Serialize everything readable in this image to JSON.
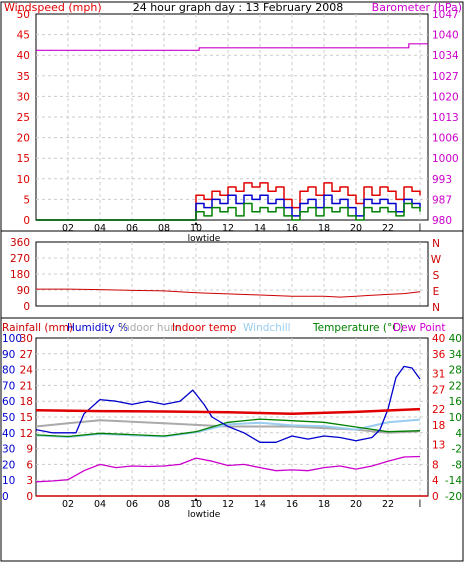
{
  "title": "24 hour graph day : 13 February 2008",
  "colors": {
    "wind": "#e00000",
    "gust_blue": "#0000cc",
    "gust_green": "#008000",
    "barometer": "#cc00cc",
    "direction": "#cc0000",
    "rainfall": "#cc0000",
    "humidity": "#0000cc",
    "indoor_hum": "#aaaaaa",
    "indoor_temp": "#e00000",
    "windchill": "#99ccee",
    "temperature": "#008000",
    "dew_point": "#cc00cc",
    "grid": "#cccccc"
  },
  "x_ticks": [
    "02",
    "04",
    "06",
    "08",
    "10",
    "12",
    "14",
    "16",
    "18",
    "20",
    "22",
    "l"
  ],
  "x_marker": "lowtide",
  "chart_data": [
    {
      "type": "line",
      "labels": {
        "windspeed": "Windspeed (mph)",
        "barometer": "Barometer (hPa)"
      },
      "y_left": {
        "ticks": [
          "0",
          "5",
          "10",
          "15",
          "20",
          "25",
          "30",
          "35",
          "40",
          "45",
          "50"
        ],
        "ylim": [
          0,
          50
        ]
      },
      "y_right": {
        "ticks": [
          "980",
          "987",
          "993",
          "1000",
          "1006",
          "1013",
          "1020",
          "1027",
          "1034",
          "1040",
          "1047"
        ],
        "ylim": [
          980,
          1047
        ]
      },
      "series": {
        "barometer": {
          "x": [
            0,
            10,
            10.2,
            23,
            23.3,
            24.5
          ],
          "y": [
            1035.2,
            1035.2,
            1036,
            1036,
            1037.3,
            1037.3
          ]
        },
        "wind_red": {
          "x": [
            0,
            9.9,
            10,
            10.5,
            11,
            11.5,
            12,
            12.5,
            13,
            13.5,
            14,
            14.5,
            15,
            15.5,
            16,
            16.5,
            17,
            17.5,
            18,
            18.5,
            19,
            19.5,
            20,
            20.5,
            21,
            21.5,
            22,
            22.5,
            23,
            23.5,
            24
          ],
          "y": [
            0,
            0,
            6,
            5,
            7,
            6,
            8,
            7,
            9,
            8,
            9,
            7,
            8,
            5,
            3,
            7,
            8,
            6,
            9,
            7,
            8,
            6,
            4,
            8,
            6,
            8,
            7,
            5,
            8,
            7,
            6
          ]
        },
        "wind_blue": {
          "x": [
            0,
            9.9,
            10,
            10.5,
            11,
            11.5,
            12,
            12.5,
            13,
            13.5,
            14,
            14.5,
            15,
            15.5,
            16,
            16.5,
            17,
            17.5,
            18,
            18.5,
            19,
            19.5,
            20,
            20.5,
            21,
            21.5,
            22,
            22.5,
            23,
            23.5,
            24
          ],
          "y": [
            0,
            0,
            4,
            3,
            5,
            4,
            6,
            4,
            6,
            5,
            6,
            4,
            5,
            3,
            1,
            4,
            5,
            3,
            6,
            4,
            5,
            3,
            1,
            5,
            4,
            5,
            4,
            2,
            5,
            4,
            3
          ]
        },
        "wind_green": {
          "x": [
            0,
            9.9,
            10,
            10.5,
            11,
            11.5,
            12,
            12.5,
            13,
            13.5,
            14,
            14.5,
            15,
            15.5,
            16,
            16.5,
            17,
            17.5,
            18,
            18.5,
            19,
            19.5,
            20,
            20.5,
            21,
            21.5,
            22,
            22.5,
            23,
            23.5,
            24
          ],
          "y": [
            0,
            0,
            2,
            1,
            3,
            2,
            3,
            1,
            4,
            2,
            3,
            2,
            3,
            1,
            0,
            2,
            3,
            1,
            3,
            2,
            3,
            1,
            0,
            3,
            2,
            3,
            2,
            1,
            4,
            3,
            2
          ]
        }
      }
    },
    {
      "type": "line",
      "labels": {
        "direction_letters": [
          "N",
          "W",
          "S",
          "E",
          "N"
        ]
      },
      "y_left": {
        "ticks": [
          "0",
          "90",
          "180",
          "270",
          "360"
        ],
        "ylim": [
          0,
          360
        ]
      },
      "series": {
        "direction": {
          "x": [
            0,
            2,
            4,
            6,
            8,
            10,
            12,
            14,
            16,
            18,
            19,
            20,
            21,
            22,
            23,
            24
          ],
          "y": [
            95,
            95,
            92,
            88,
            85,
            75,
            68,
            62,
            55,
            55,
            50,
            55,
            60,
            65,
            70,
            80
          ]
        }
      }
    },
    {
      "type": "line",
      "labels": {
        "rainfall": "Rainfall (mm)",
        "humidity": "Humidity %",
        "indoor_hum": "Indoor hum",
        "indoor_temp": "Indoor temp",
        "windchill": "Windchill",
        "temperature": "Temperature (°C)",
        "dew_point": "Dew Point"
      },
      "y_humidity": {
        "ticks": [
          "0",
          "10",
          "20",
          "30",
          "40",
          "50",
          "60",
          "70",
          "80",
          "90",
          "100"
        ],
        "ylim": [
          0,
          100
        ]
      },
      "y_rain": {
        "ticks": [
          "0",
          "3",
          "6",
          "9",
          "12",
          "15",
          "18",
          "21",
          "24",
          "27",
          "30"
        ],
        "ylim": [
          0,
          30
        ]
      },
      "y_indoor": {
        "ticks": [
          "0",
          "4",
          "8",
          "13",
          "18",
          "22",
          "27",
          "31",
          "36",
          "40"
        ],
        "ylim": [
          0,
          40
        ]
      },
      "y_outdoor": {
        "ticks": [
          "-20",
          "-14",
          "-8",
          "-2",
          "4",
          "10",
          "16",
          "22",
          "28",
          "34",
          "40"
        ],
        "ylim": [
          -20,
          40
        ]
      },
      "series": {
        "rainfall": {
          "x": [
            0,
            24.5
          ],
          "y": [
            0,
            0
          ]
        },
        "indoor_temp": {
          "x": [
            0,
            4,
            8,
            12,
            16,
            20,
            24
          ],
          "y": [
            21.7,
            21.5,
            21.4,
            21.2,
            20.8,
            21.3,
            22
          ]
        },
        "humidity": {
          "x": [
            0,
            1,
            2,
            2.5,
            3,
            4,
            5,
            6,
            7,
            8,
            9,
            9.8,
            10.5,
            11,
            12,
            13,
            14,
            15,
            16,
            17,
            18,
            19,
            20,
            21,
            21.5,
            22,
            22.5,
            23,
            23.5,
            24
          ],
          "y": [
            42,
            40,
            40,
            40,
            52,
            61,
            60,
            58,
            60,
            58,
            60,
            67,
            58,
            50,
            44,
            40,
            34,
            34,
            38,
            36,
            38,
            37,
            35,
            37,
            42,
            55,
            75,
            82,
            81,
            74
          ]
        },
        "indoor_hum": {
          "x": [
            0,
            2,
            4,
            6,
            8,
            10,
            12,
            14,
            16,
            18,
            20,
            22,
            24
          ],
          "y": [
            44,
            46,
            48,
            47,
            46,
            45,
            44,
            44,
            44,
            43,
            42,
            40,
            41
          ]
        },
        "temperature": {
          "x": [
            0,
            2,
            4,
            6,
            8,
            10,
            12,
            14,
            16,
            18,
            20,
            22,
            24
          ],
          "y": [
            3.2,
            2.6,
            3.8,
            3.3,
            2.8,
            4.4,
            8,
            9.2,
            8.6,
            8,
            6.2,
            4.4,
            4.8
          ]
        },
        "windchill": {
          "x": [
            0,
            2,
            4,
            6,
            8,
            10,
            12,
            14,
            16,
            18,
            20,
            22,
            24
          ],
          "y": [
            3,
            2.4,
            3.6,
            3.1,
            2.6,
            4.2,
            7.2,
            7.8,
            6.8,
            6.5,
            5.2,
            8,
            9
          ]
        },
        "dew_point": {
          "x": [
            0,
            1,
            2,
            3,
            4,
            5,
            6,
            7,
            8,
            9,
            10,
            11,
            12,
            13,
            14,
            15,
            16,
            17,
            18,
            19,
            20,
            21,
            22,
            23,
            24
          ],
          "y": [
            -14.6,
            -14.3,
            -13.8,
            -10.4,
            -8,
            -9.2,
            -8.6,
            -8.8,
            -8.6,
            -8,
            -5.6,
            -6.8,
            -8.4,
            -8,
            -9.2,
            -10.4,
            -10.1,
            -10.4,
            -9.2,
            -8.6,
            -9.8,
            -8.6,
            -6.8,
            -5.2,
            -5
          ]
        }
      }
    }
  ]
}
